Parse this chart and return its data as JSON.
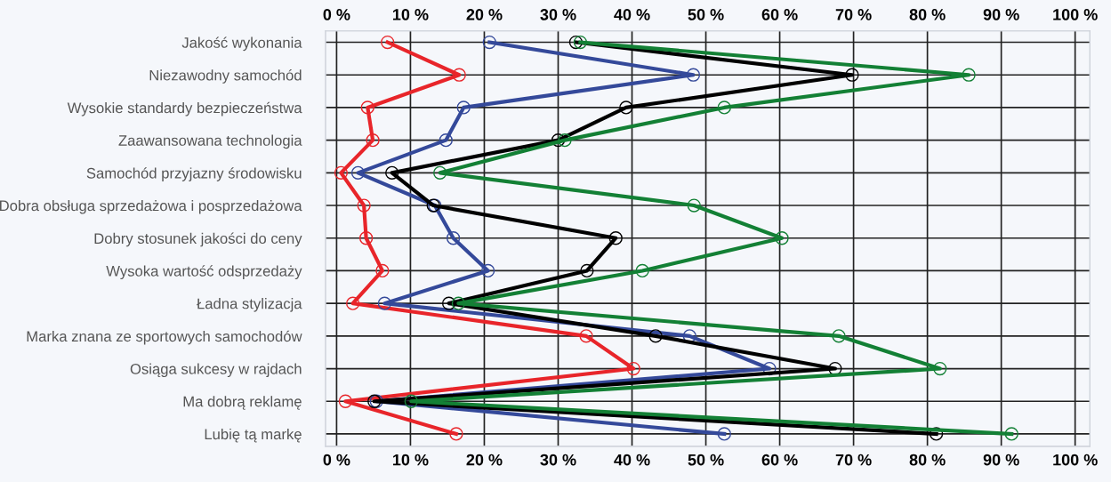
{
  "chart_data": {
    "type": "line",
    "orientation": "horizontal",
    "categories": [
      "Jakość wykonania",
      "Niezawodny samochód",
      "Wysokie standardy bezpieczeństwa",
      "Zaawansowana technologia",
      "Samochód przyjazny środowisku",
      "Dobra obsługa sprzedażowa i posprzedażowa",
      "Dobry stosunek jakości do ceny",
      "Wysoka wartość odsprzedaży",
      "Ładna stylizacja",
      "Marka znana ze sportowych samochodów",
      "Osiąga sukcesy w rajdach",
      "Ma dobrą reklamę",
      "Lubię tą markę"
    ],
    "series": [
      {
        "color": "#e8252a",
        "values": [
          6.9,
          16.6,
          4.2,
          4.9,
          0.6,
          3.7,
          4.0,
          6.2,
          2.2,
          33.8,
          40.2,
          1.2,
          16.2
        ]
      },
      {
        "color": "#34499a",
        "values": [
          20.7,
          48.3,
          17.2,
          14.8,
          2.9,
          13.3,
          15.8,
          20.5,
          6.5,
          47.8,
          58.6,
          5.4,
          52.5
        ]
      },
      {
        "color": "#000000",
        "values": [
          32.4,
          69.8,
          39.2,
          30.0,
          7.5,
          13.1,
          37.8,
          33.9,
          15.2,
          43.2,
          67.5,
          5.1,
          81.2
        ]
      },
      {
        "color": "#138035",
        "values": [
          33.0,
          85.6,
          52.5,
          30.9,
          14.0,
          48.4,
          60.3,
          41.4,
          16.5,
          68.0,
          81.7,
          10.1,
          91.4
        ]
      }
    ],
    "xlim": [
      -1.5,
      102
    ],
    "xticks": [
      {
        "value": 0,
        "label": "0 %"
      },
      {
        "value": 10,
        "label": "10 %"
      },
      {
        "value": 20,
        "label": "20 %"
      },
      {
        "value": 30,
        "label": "30 %"
      },
      {
        "value": 40,
        "label": "40 %"
      },
      {
        "value": 50,
        "label": "50 %"
      },
      {
        "value": 60,
        "label": "60 %"
      },
      {
        "value": 70,
        "label": "70 %"
      },
      {
        "value": 80,
        "label": "80 %"
      },
      {
        "value": 90,
        "label": "90 %"
      },
      {
        "value": 100,
        "label": "100 %"
      }
    ],
    "x2lim": [
      -1.5,
      102
    ],
    "x2ticks": [
      {
        "value": 0,
        "label": "0 %"
      },
      {
        "value": 10,
        "label": "10 %"
      },
      {
        "value": 20,
        "label": "20 %"
      },
      {
        "value": 30,
        "label": "30 %"
      },
      {
        "value": 40,
        "label": "40 %"
      },
      {
        "value": 50,
        "label": "50 %"
      },
      {
        "value": 60,
        "label": "60 %"
      },
      {
        "value": 70,
        "label": "70 %"
      },
      {
        "value": 80,
        "label": "80 %"
      },
      {
        "value": 90,
        "label": "90 %"
      },
      {
        "value": 100,
        "label": "100 %"
      }
    ],
    "grid": true,
    "marker": "circle",
    "line_style": "solid"
  }
}
